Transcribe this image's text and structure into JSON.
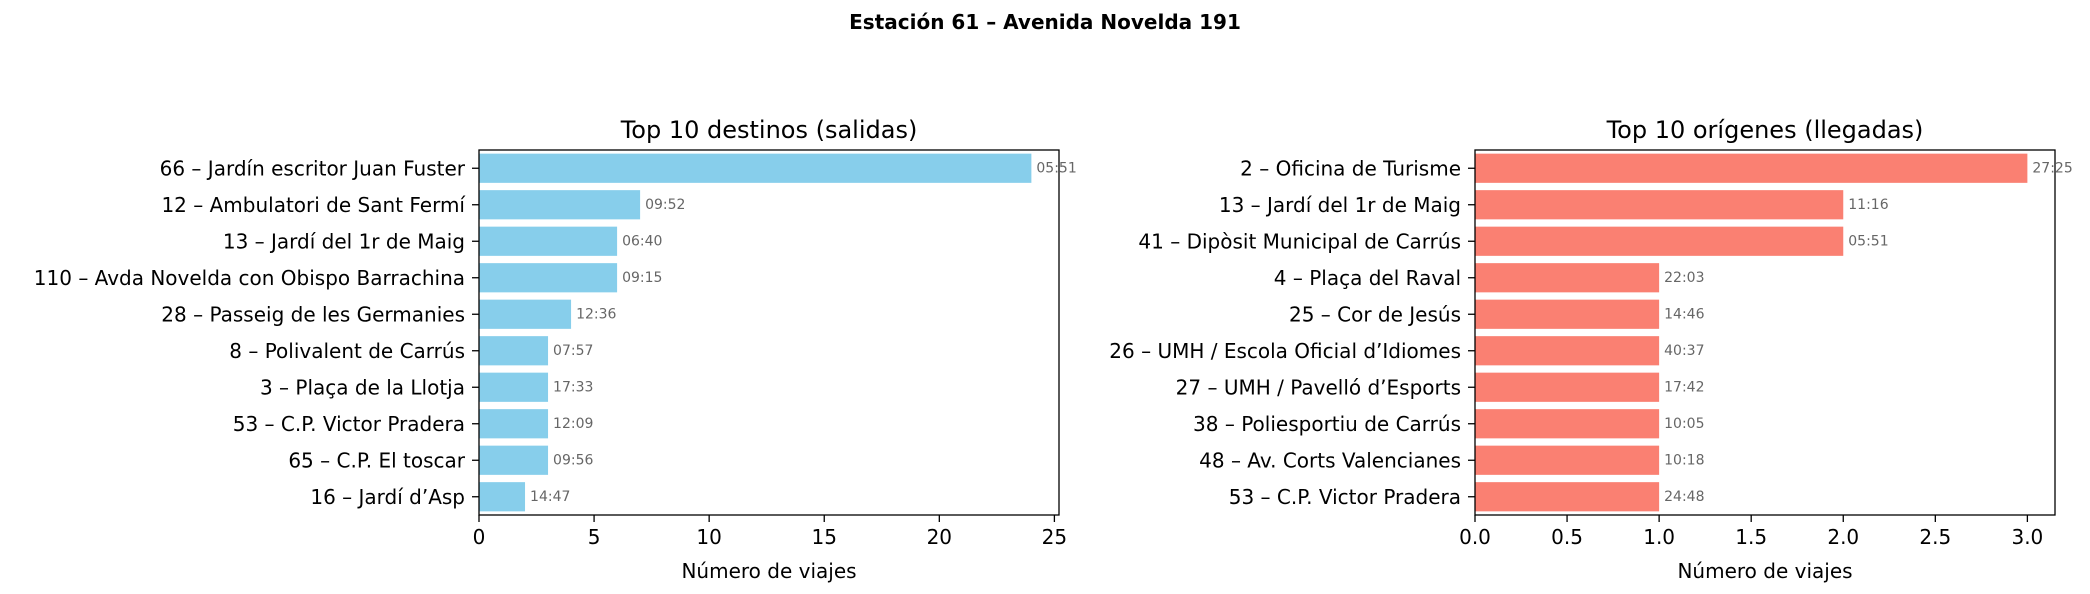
{
  "suptitle": "Estación 61 – Avenida Novelda 191",
  "chart_data": [
    {
      "type": "bar",
      "orientation": "horizontal",
      "title": "Top 10 destinos (salidas)",
      "xlabel": "Número de viajes",
      "ylabel": "",
      "xlim": [
        0,
        25.2
      ],
      "xticks": [
        0,
        5,
        10,
        15,
        20,
        25
      ],
      "xtick_labels": [
        "0",
        "5",
        "10",
        "15",
        "20",
        "25"
      ],
      "color": "#87ceeb",
      "categories": [
        "66 – Jardín escritor Juan Fuster",
        "12 – Ambulatori de Sant Fermí",
        "13 – Jardí del 1r de Maig",
        "110 – Avda Novelda con Obispo Barrachina",
        "28 – Passeig de les Germanies",
        "8 – Polivalent de Carrús",
        "3 – Plaça de la Llotja",
        "53 – C.P. Victor Pradera",
        "65 – C.P. El toscar",
        "16 – Jardí d’Asp"
      ],
      "values": [
        24,
        7,
        6,
        6,
        4,
        3,
        3,
        3,
        3,
        2
      ],
      "annotations": [
        "05:51",
        "09:52",
        "06:40",
        "09:15",
        "12:36",
        "07:57",
        "17:33",
        "12:09",
        "09:56",
        "14:47"
      ]
    },
    {
      "type": "bar",
      "orientation": "horizontal",
      "title": "Top 10 orígenes (llegadas)",
      "xlabel": "Número de viajes",
      "ylabel": "",
      "xlim": [
        0,
        3.15
      ],
      "xticks": [
        0,
        0.5,
        1,
        1.5,
        2,
        2.5,
        3
      ],
      "xtick_labels": [
        "0.0",
        "0.5",
        "1.0",
        "1.5",
        "2.0",
        "2.5",
        "3.0"
      ],
      "color": "#fa8072",
      "categories": [
        "2 – Oficina de Turisme",
        "13 – Jardí del 1r de Maig",
        "41 – Dipòsit Municipal de Carrús",
        "4 – Plaça del Raval",
        "25 – Cor de Jesús",
        "26 – UMH / Escola Oficial d’Idiomes",
        "27 – UMH / Pavelló d’Esports",
        "38 – Poliesportiu de Carrús",
        "48 – Av. Corts Valencianes",
        "53 – C.P. Victor Pradera"
      ],
      "values": [
        3,
        2,
        2,
        1,
        1,
        1,
        1,
        1,
        1,
        1
      ],
      "annotations": [
        "27:25",
        "11:16",
        "05:51",
        "22:03",
        "14:46",
        "40:37",
        "17:42",
        "10:05",
        "10:18",
        "24:48"
      ]
    }
  ]
}
